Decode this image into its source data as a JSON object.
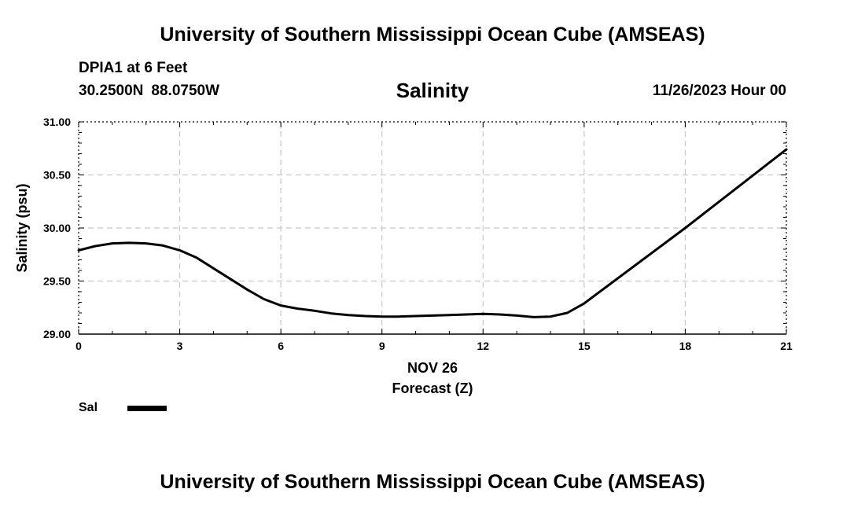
{
  "header": {
    "title": "University of Southern Mississippi Ocean Cube (AMSEAS)",
    "station": "DPIA1 at 6 Feet",
    "latitude": "30.2500N",
    "longitude": "88.0750W",
    "datetime": "11/26/2023 Hour 00"
  },
  "footer": {
    "title": "University of Southern Mississippi Ocean Cube (AMSEAS)"
  },
  "legend": {
    "label": "Sal",
    "color": "#000000"
  },
  "chart_data": {
    "type": "line",
    "title": "Salinity",
    "xlabel": "Forecast (Z)",
    "xlabel_date": "NOV 26",
    "ylabel": "Salinity (psu)",
    "xlim": [
      0,
      21
    ],
    "ylim": [
      29.0,
      31.0
    ],
    "x_ticks": [
      0,
      3,
      6,
      9,
      12,
      15,
      18,
      21
    ],
    "x_tick_labels": [
      "0",
      "3",
      "6",
      "9",
      "12",
      "15",
      "18",
      "21"
    ],
    "y_ticks": [
      29.0,
      29.5,
      30.0,
      30.5,
      31.0
    ],
    "y_tick_labels": [
      "29.00",
      "29.50",
      "30.00",
      "30.50",
      "31.00"
    ],
    "grid": true,
    "legend_position": "bottom-left",
    "series": [
      {
        "name": "Sal",
        "color": "#000000",
        "x": [
          0,
          0.5,
          1,
          1.5,
          2,
          2.5,
          3,
          3.5,
          4,
          4.5,
          5,
          5.5,
          6,
          6.5,
          7,
          7.5,
          8,
          8.5,
          9,
          9.5,
          10,
          10.5,
          11,
          11.5,
          12,
          12.5,
          13,
          13.5,
          14,
          14.5,
          15,
          18,
          21
        ],
        "values": [
          29.79,
          29.83,
          29.855,
          29.86,
          29.855,
          29.835,
          29.79,
          29.72,
          29.62,
          29.52,
          29.42,
          29.33,
          29.27,
          29.24,
          29.22,
          29.195,
          29.18,
          29.17,
          29.165,
          29.165,
          29.17,
          29.175,
          29.18,
          29.185,
          29.19,
          29.185,
          29.175,
          29.16,
          29.165,
          29.2,
          29.29,
          30.0,
          30.74
        ]
      }
    ]
  }
}
